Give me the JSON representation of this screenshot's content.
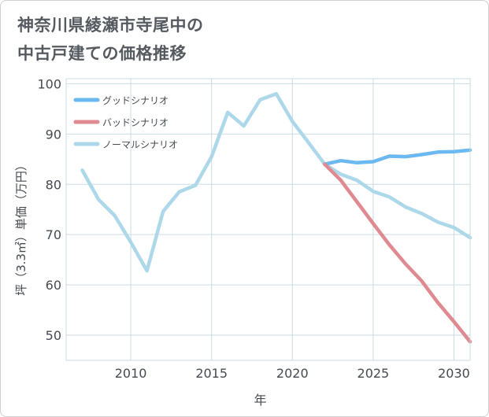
{
  "title_line1": "神奈川県綾瀬市寺尾中の",
  "title_line2": "中古戸建ての価格推移",
  "chart_data": {
    "type": "line",
    "title": "神奈川県綾瀬市寺尾中の 中古戸建ての価格推移",
    "xlabel": "年",
    "ylabel": "坪（3.3㎡）単価（万円）",
    "xlim": [
      2006,
      2031
    ],
    "ylim": [
      45,
      101
    ],
    "x_ticks": [
      2010,
      2015,
      2020,
      2025,
      2030
    ],
    "y_ticks": [
      50,
      60,
      70,
      80,
      90,
      100
    ],
    "grid": true,
    "legend_position": "top-left",
    "series": [
      {
        "name": "グッドシナリオ",
        "color": "#6cb8f0",
        "x": [
          2022,
          2023,
          2024,
          2025,
          2026,
          2027,
          2028,
          2029,
          2030,
          2031
        ],
        "y": [
          84,
          84.7,
          84.3,
          84.5,
          85.6,
          85.5,
          85.9,
          86.4,
          86.5,
          86.8
        ]
      },
      {
        "name": "バッドシナリオ",
        "color": "#df8a90",
        "x": [
          2022,
          2023,
          2024,
          2025,
          2026,
          2027,
          2028,
          2029,
          2030,
          2031
        ],
        "y": [
          84,
          80.8,
          76.5,
          72.2,
          68,
          64.2,
          60.8,
          56.5,
          52.7,
          48.7
        ]
      },
      {
        "name": "ノーマルシナリオ",
        "color": "#add8ea",
        "x": [
          2007,
          2008,
          2009,
          2010,
          2011,
          2012,
          2013,
          2014,
          2015,
          2016,
          2017,
          2018,
          2019,
          2020,
          2021,
          2022,
          2023,
          2024,
          2025,
          2026,
          2027,
          2028,
          2029,
          2030,
          2031
        ],
        "y": [
          82.8,
          77,
          73.8,
          68.5,
          62.8,
          74.6,
          78.5,
          79.8,
          85.5,
          94.3,
          91.6,
          96.8,
          98,
          92.5,
          88.3,
          84,
          82,
          80.8,
          78.6,
          77.5,
          75.5,
          74.2,
          72.5,
          71.4,
          69.4
        ]
      }
    ]
  }
}
